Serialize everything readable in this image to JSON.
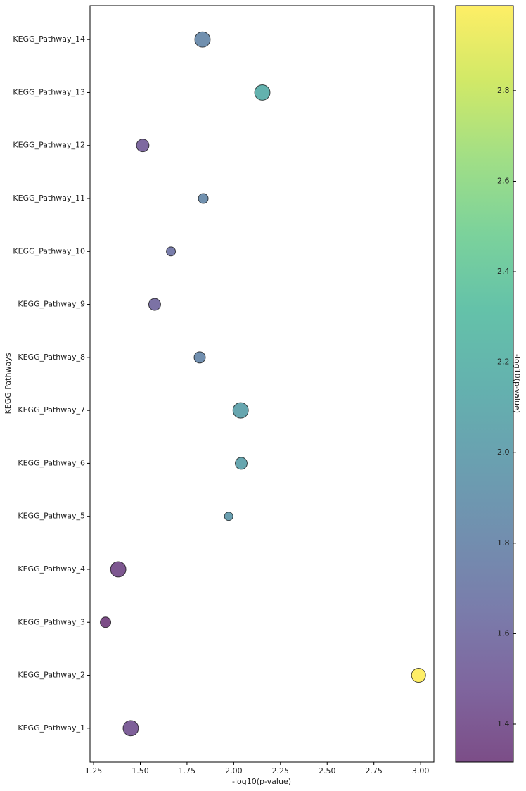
{
  "chart_data": {
    "type": "scatter",
    "xlabel": "-log10(p-value)",
    "ylabel": "KEGG Pathways",
    "categories": [
      "KEGG_Pathway_1",
      "KEGG_Pathway_2",
      "KEGG_Pathway_3",
      "KEGG_Pathway_4",
      "KEGG_Pathway_5",
      "KEGG_Pathway_6",
      "KEGG_Pathway_7",
      "KEGG_Pathway_8",
      "KEGG_Pathway_9",
      "KEGG_Pathway_10",
      "KEGG_Pathway_11",
      "KEGG_Pathway_12",
      "KEGG_Pathway_13",
      "KEGG_Pathway_14"
    ],
    "values": [
      1.449,
      2.989,
      1.314,
      1.382,
      1.973,
      2.04,
      2.037,
      1.818,
      1.577,
      1.664,
      1.837,
      1.513,
      2.153,
      1.833
    ],
    "sizes": [
      120,
      100,
      56,
      120,
      36,
      72,
      120,
      64,
      72,
      42,
      49,
      80,
      120,
      120
    ],
    "xlim": [
      1.231,
      3.071
    ],
    "xticks": [
      {
        "value": 1.25,
        "label": "1.25"
      },
      {
        "value": 1.5,
        "label": "1.50"
      },
      {
        "value": 1.75,
        "label": "1.75"
      },
      {
        "value": 2.0,
        "label": "2.00"
      },
      {
        "value": 2.25,
        "label": "2.25"
      },
      {
        "value": 2.5,
        "label": "2.50"
      },
      {
        "value": 2.75,
        "label": "2.75"
      },
      {
        "value": 3.0,
        "label": "3.00"
      }
    ],
    "colormap": "viridis",
    "alpha": 0.7,
    "clim": [
      1.316,
      2.988
    ],
    "cticks": [
      1.4,
      1.6,
      1.8,
      {
        "value": 2.0,
        "label": "2.0"
      },
      2.2,
      2.4,
      2.6,
      2.8
    ],
    "colorbar_label": "-log10(p-value)"
  }
}
